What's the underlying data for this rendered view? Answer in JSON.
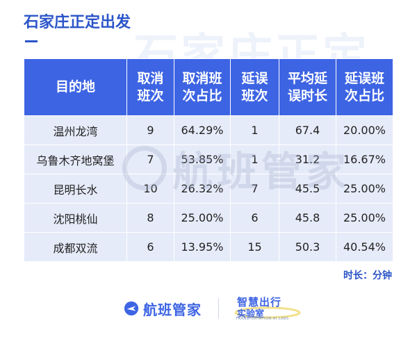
{
  "title": "石家庄正定出发",
  "watermark_top": "石家庄正定",
  "watermark_center": "航班管家",
  "table": {
    "headers": [
      [
        "目的地"
      ],
      [
        "取消",
        "班次"
      ],
      [
        "取消班",
        "次占比"
      ],
      [
        "延误",
        "班次"
      ],
      [
        "平均延",
        "误时长"
      ],
      [
        "延误班",
        "次占比"
      ]
    ],
    "rows": [
      [
        "温州龙湾",
        "9",
        "64.29%",
        "1",
        "67.4",
        "20.00%"
      ],
      [
        "乌鲁木齐地窝堡",
        "7",
        "53.85%",
        "1",
        "31.2",
        "16.67%"
      ],
      [
        "昆明长水",
        "10",
        "26.32%",
        "7",
        "45.5",
        "25.00%"
      ],
      [
        "沈阳桃仙",
        "8",
        "25.00%",
        "6",
        "45.8",
        "25.00%"
      ],
      [
        "成都双流",
        "6",
        "13.95%",
        "15",
        "50.3",
        "40.54%"
      ]
    ]
  },
  "unit_note": "时长：分钟",
  "footer": {
    "brand": "航班管家",
    "lab_line1": "智慧出行",
    "lab_line2": "实验室",
    "lab_en": "TRANSPORTATION AI LABS"
  },
  "colors": {
    "accent": "#3d64e3",
    "title": "#2a54c8",
    "cell_bg": "#e6ebf9",
    "lab_highlight": "#f2e08a"
  },
  "icons": [
    "plane-logo-icon",
    "lab-badge-icon"
  ]
}
